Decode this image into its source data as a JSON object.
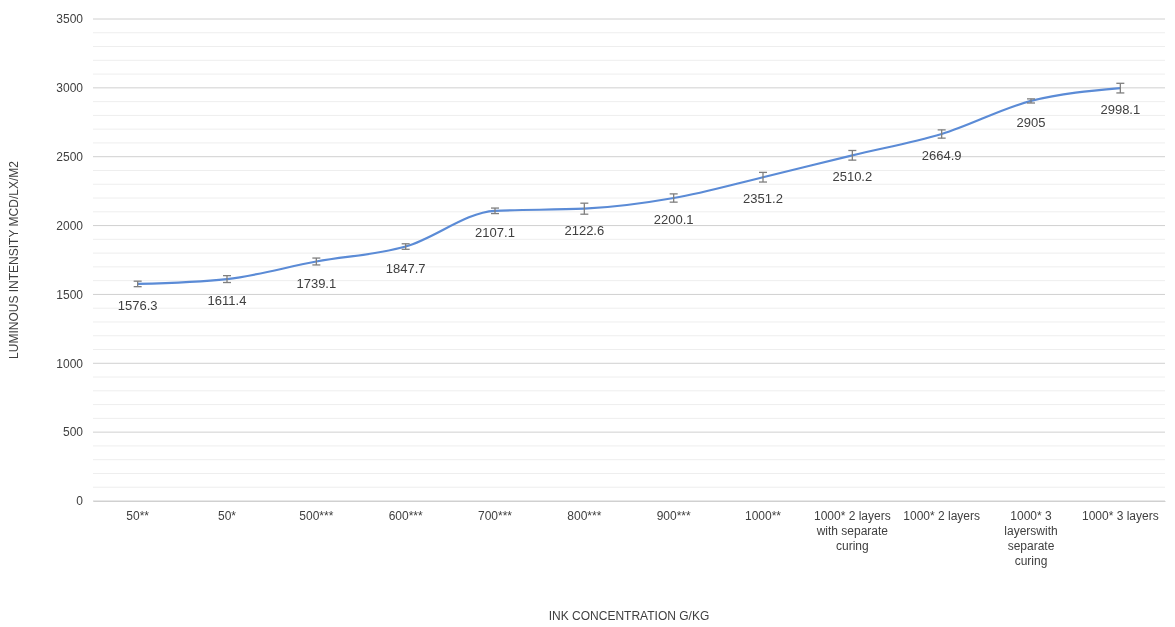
{
  "chart_data": {
    "type": "line",
    "xlabel": "INK CONCENTRATION G/KG",
    "ylabel": "LUMINOUS INTENSITY MCD/LX/M2",
    "categories": [
      "50**",
      "50*",
      "500***",
      "600***",
      "700***",
      "800***",
      "900***",
      "1000**",
      "1000* 2 layers with separate curing",
      "1000* 2 layers",
      "1000* 3 layerswith separate curing",
      "1000* 3 layers"
    ],
    "series": [
      {
        "color": "#5b8bd6",
        "values": [
          1576.3,
          1611.4,
          1739.1,
          1847.7,
          2107.1,
          2122.6,
          2200.1,
          2351.2,
          2510.2,
          2664.9,
          2905,
          2998.1
        ],
        "errors": [
          20,
          25,
          25,
          20,
          20,
          40,
          30,
          35,
          35,
          30,
          15,
          35
        ]
      }
    ],
    "ylim": [
      0,
      3500
    ],
    "yticks": [
      0,
      {
        "value": 100,
        "label": null
      },
      {
        "value": 200,
        "label": null
      },
      {
        "value": 300,
        "label": null
      },
      {
        "value": 400,
        "label": null
      },
      500,
      {
        "value": 600,
        "label": null
      },
      {
        "value": 700,
        "label": null
      },
      {
        "value": 800,
        "label": null
      },
      {
        "value": 900,
        "label": null
      },
      1000,
      {
        "value": 1100,
        "label": null
      },
      {
        "value": 1200,
        "label": null
      },
      {
        "value": 1300,
        "label": null
      },
      {
        "value": 1400,
        "label": null
      },
      1500,
      {
        "value": 1600,
        "label": null
      },
      {
        "value": 1700,
        "label": null
      },
      {
        "value": 1800,
        "label": null
      },
      {
        "value": 1900,
        "label": null
      },
      2000,
      {
        "value": 2100,
        "label": null
      },
      {
        "value": 2200,
        "label": null
      },
      {
        "value": 2300,
        "label": null
      },
      {
        "value": 2400,
        "label": null
      },
      2500,
      {
        "value": 2600,
        "label": null
      },
      {
        "value": 2700,
        "label": null
      },
      {
        "value": 2800,
        "label": null
      },
      {
        "value": 2900,
        "label": null
      },
      3000,
      {
        "value": 3100,
        "label": null
      },
      {
        "value": 3200,
        "label": null
      },
      {
        "value": 3300,
        "label": null
      },
      {
        "value": 3400,
        "label": null
      },
      3500
    ],
    "grid": true,
    "data_labels": true,
    "marker": "none",
    "line_style": "solid"
  }
}
